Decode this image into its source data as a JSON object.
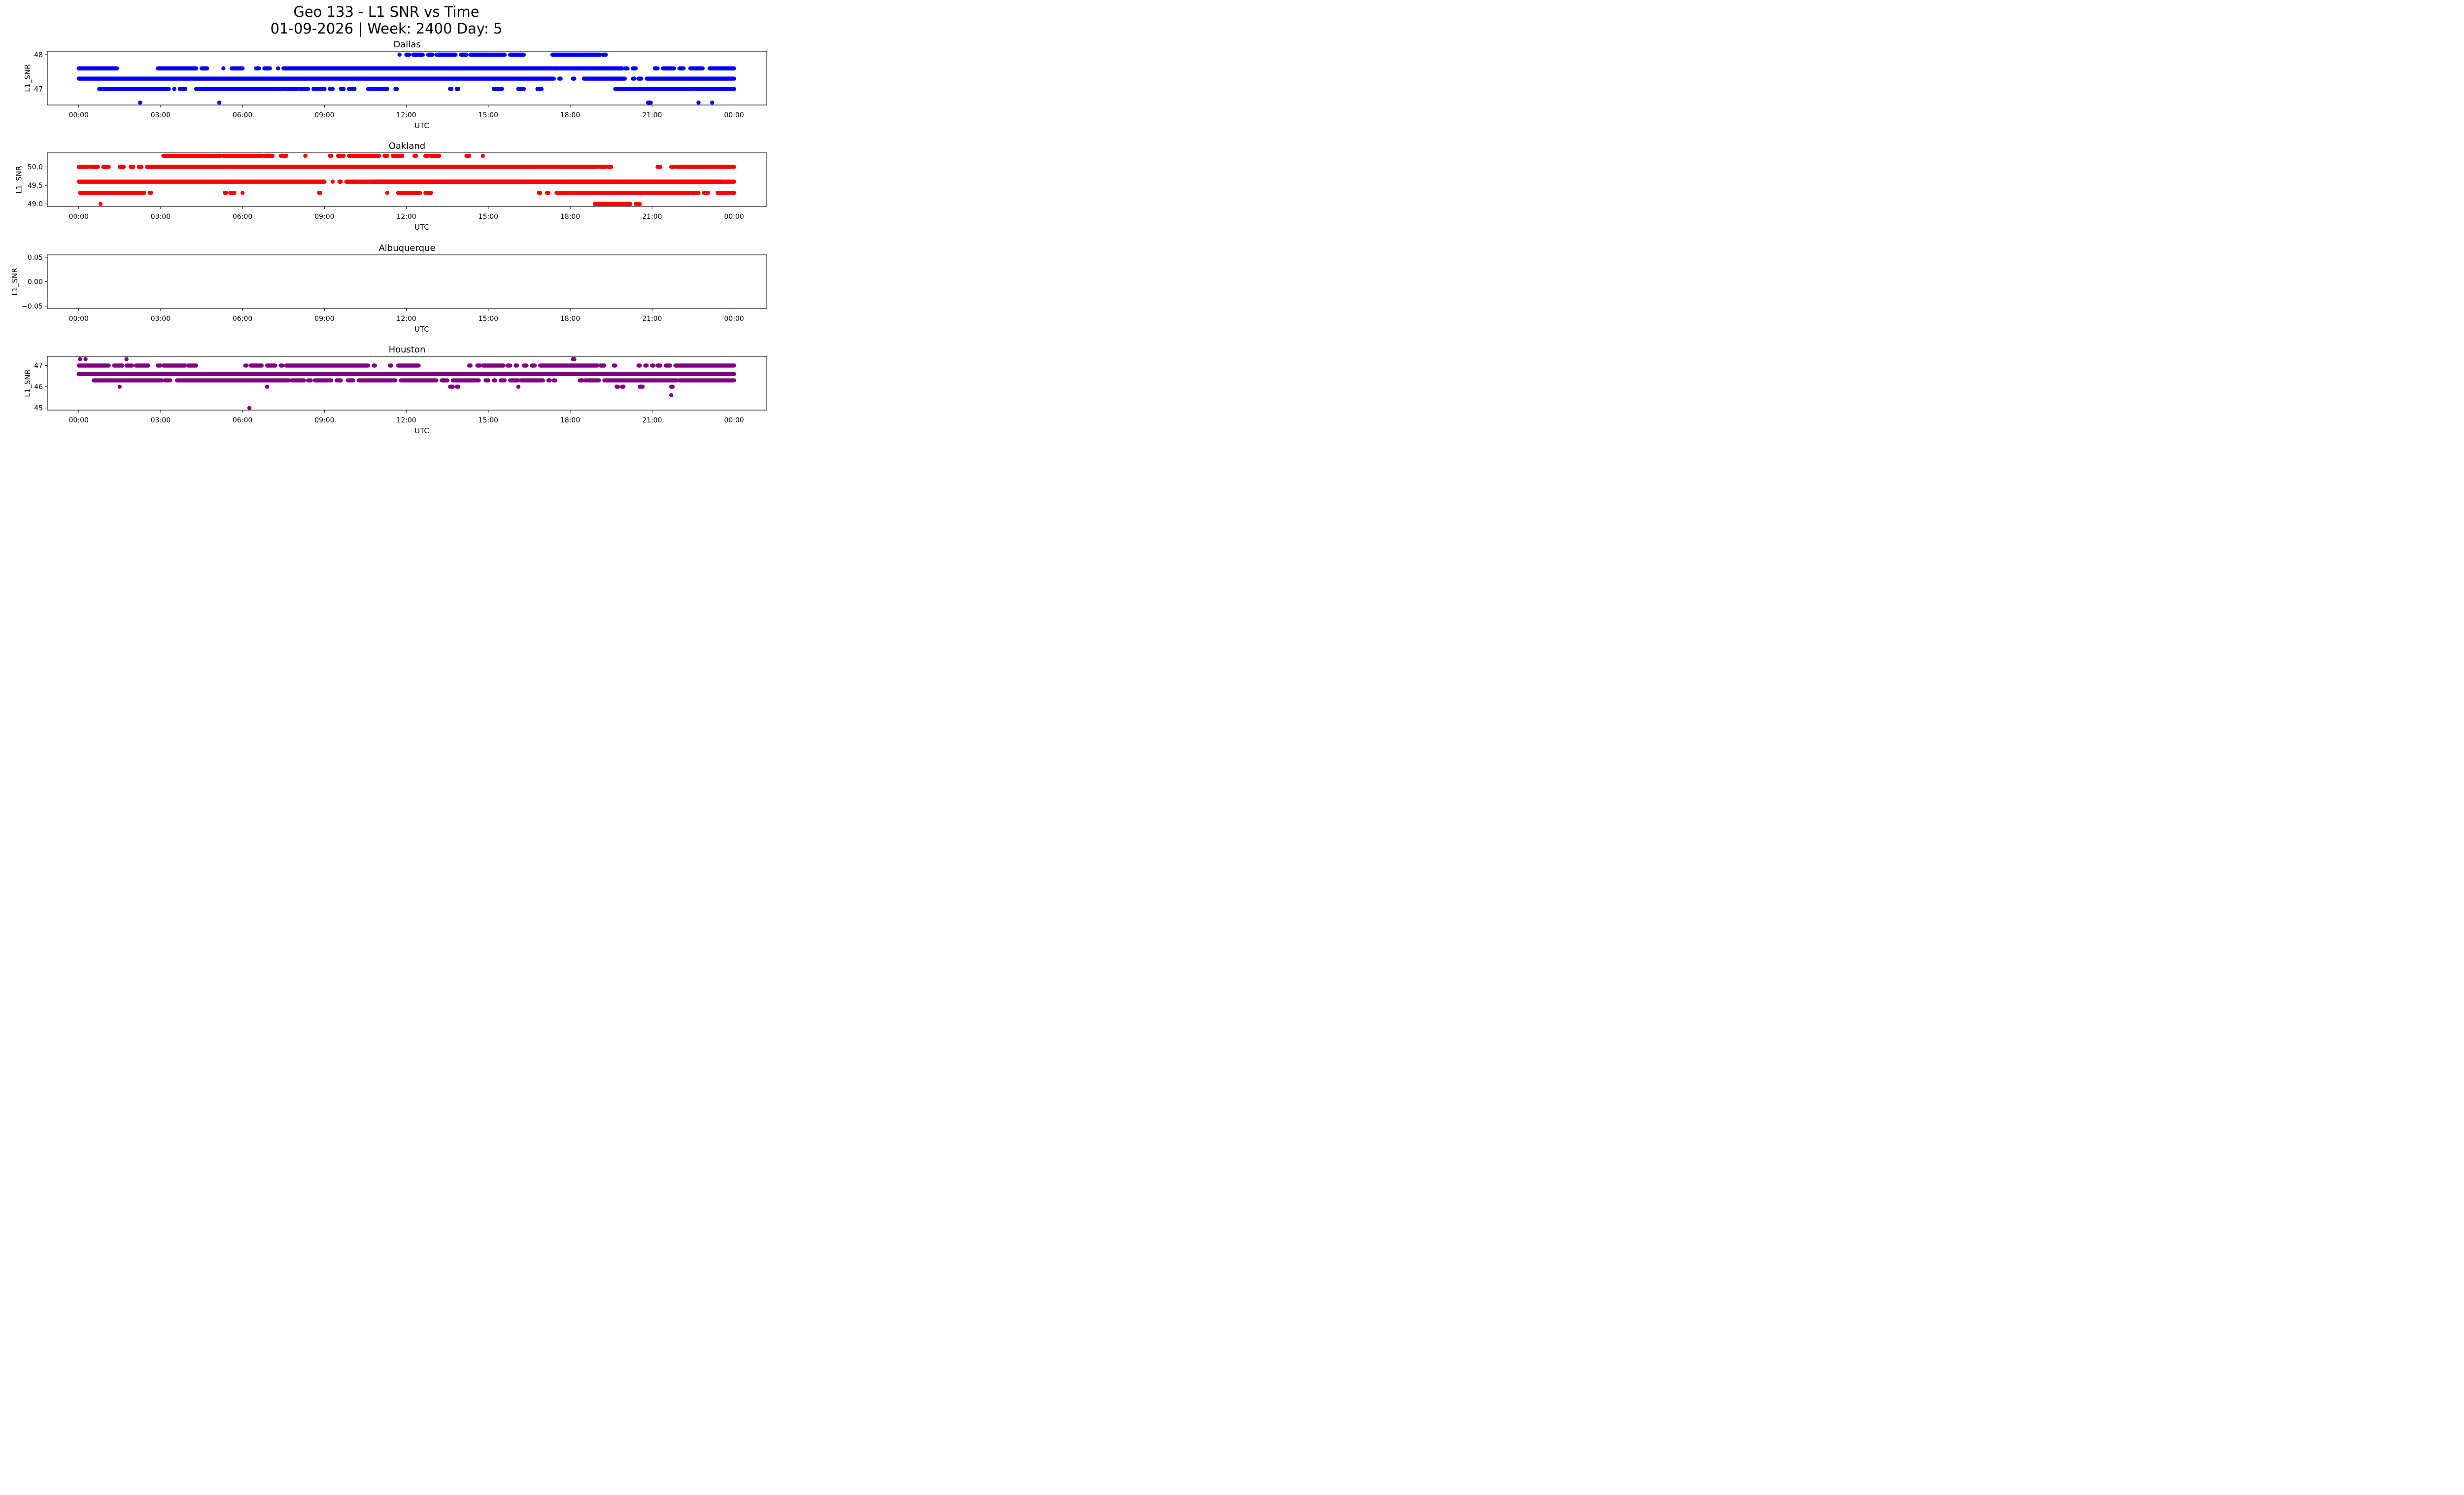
{
  "figure": {
    "title_line1": "Geo 133 - L1 SNR vs Time",
    "title_line2": "01-09-2026 | Week: 2400 Day: 5"
  },
  "chart_data": [
    {
      "type": "scatter",
      "title": "Dallas",
      "xlabel": "UTC",
      "ylabel": "L1_SNR",
      "color": "#0000ff",
      "x_unit": "hours UTC",
      "xlim": [
        -1.15,
        25.2
      ],
      "ylim": [
        46.53,
        48.1
      ],
      "xticks": [
        0,
        3,
        6,
        9,
        12,
        15,
        18,
        21,
        24
      ],
      "xtick_labels": [
        "00:00",
        "03:00",
        "06:00",
        "09:00",
        "12:00",
        "15:00",
        "18:00",
        "21:00",
        "00:00"
      ],
      "yticks": [
        47,
        48
      ],
      "ytick_labels": [
        "47",
        "48"
      ],
      "levels": [
        {
          "y": 48.0,
          "runs": [
            [
              11.75,
              11.75
            ],
            [
              12.0,
              12.1
            ],
            [
              12.25,
              12.6
            ],
            [
              12.8,
              12.95
            ],
            [
              13.1,
              13.8
            ],
            [
              14.0,
              14.2
            ],
            [
              14.35,
              15.0
            ],
            [
              15.05,
              15.6
            ],
            [
              15.8,
              16.3
            ],
            [
              17.35,
              19.1
            ],
            [
              19.2,
              19.3
            ]
          ]
        },
        {
          "y": 47.6,
          "runs": [
            [
              0.0,
              1.4
            ],
            [
              2.9,
              4.3
            ],
            [
              4.5,
              4.7
            ],
            [
              5.3,
              5.3
            ],
            [
              5.6,
              6.0
            ],
            [
              6.5,
              6.6
            ],
            [
              6.8,
              7.0
            ],
            [
              7.3,
              7.3
            ],
            [
              7.5,
              19.9
            ],
            [
              20.0,
              20.1
            ],
            [
              20.3,
              20.4
            ],
            [
              21.1,
              21.2
            ],
            [
              21.4,
              21.8
            ],
            [
              22.0,
              22.15
            ],
            [
              22.4,
              22.85
            ],
            [
              23.1,
              24.0
            ]
          ]
        },
        {
          "y": 47.3,
          "runs": [
            [
              0.0,
              17.4
            ],
            [
              17.6,
              17.65
            ],
            [
              18.1,
              18.15
            ],
            [
              18.5,
              20.0
            ],
            [
              20.3,
              20.35
            ],
            [
              20.5,
              20.6
            ],
            [
              20.8,
              24.0
            ]
          ]
        },
        {
          "y": 47.0,
          "runs": [
            [
              0.75,
              3.3
            ],
            [
              3.5,
              3.5
            ],
            [
              3.7,
              3.9
            ],
            [
              4.3,
              7.5
            ],
            [
              7.6,
              8.0
            ],
            [
              8.1,
              8.4
            ],
            [
              8.6,
              9.0
            ],
            [
              9.2,
              9.3
            ],
            [
              9.6,
              9.7
            ],
            [
              9.9,
              10.1
            ],
            [
              10.6,
              10.8
            ],
            [
              10.9,
              11.3
            ],
            [
              11.6,
              11.65
            ],
            [
              13.6,
              13.65
            ],
            [
              13.85,
              13.9
            ],
            [
              15.2,
              15.5
            ],
            [
              16.1,
              16.3
            ],
            [
              16.8,
              16.95
            ],
            [
              19.65,
              22.5
            ],
            [
              22.6,
              23.8
            ],
            [
              23.85,
              24.0
            ]
          ]
        },
        {
          "y": 46.6,
          "runs": [
            [
              2.25,
              2.25
            ],
            [
              5.15,
              5.15
            ],
            [
              20.85,
              20.95
            ],
            [
              22.7,
              22.7
            ],
            [
              23.2,
              23.2
            ]
          ]
        }
      ]
    },
    {
      "type": "scatter",
      "title": "Oakland",
      "xlabel": "UTC",
      "ylabel": "L1_SNR",
      "color": "#ff0000",
      "x_unit": "hours UTC",
      "xlim": [
        -1.15,
        25.2
      ],
      "ylim": [
        48.93,
        50.38
      ],
      "xticks": [
        0,
        3,
        6,
        9,
        12,
        15,
        18,
        21,
        24
      ],
      "xtick_labels": [
        "00:00",
        "03:00",
        "06:00",
        "09:00",
        "12:00",
        "15:00",
        "18:00",
        "21:00",
        "00:00"
      ],
      "yticks": [
        49.0,
        49.5,
        50.0
      ],
      "ytick_labels": [
        "49.0",
        "49.5",
        "50.0"
      ],
      "levels": [
        {
          "y": 50.3,
          "runs": [
            [
              3.1,
              5.2
            ],
            [
              5.3,
              6.7
            ],
            [
              6.8,
              7.1
            ],
            [
              6.85,
              6.95
            ],
            [
              7.4,
              7.6
            ],
            [
              8.3,
              8.3
            ],
            [
              9.2,
              9.25
            ],
            [
              9.5,
              9.7
            ],
            [
              9.9,
              11.0
            ],
            [
              11.2,
              11.3
            ],
            [
              11.5,
              11.85
            ],
            [
              12.3,
              12.35
            ],
            [
              12.7,
              12.8
            ],
            [
              12.9,
              13.2
            ],
            [
              14.2,
              14.3
            ],
            [
              14.8,
              14.8
            ]
          ]
        },
        {
          "y": 50.0,
          "runs": [
            [
              0.0,
              0.35
            ],
            [
              0.45,
              0.7
            ],
            [
              0.9,
              1.1
            ],
            [
              1.5,
              1.65
            ],
            [
              1.9,
              2.0
            ],
            [
              2.2,
              2.3
            ],
            [
              2.5,
              19.0
            ],
            [
              19.1,
              19.3
            ],
            [
              19.4,
              19.5
            ],
            [
              21.2,
              21.3
            ],
            [
              21.7,
              21.8
            ],
            [
              21.9,
              24.0
            ]
          ]
        },
        {
          "y": 49.6,
          "runs": [
            [
              0.0,
              9.0
            ],
            [
              9.3,
              9.3
            ],
            [
              9.55,
              9.6
            ],
            [
              9.8,
              23.55
            ],
            [
              10.0,
              10.05
            ],
            [
              10.35,
              10.4
            ],
            [
              10.5,
              10.55
            ],
            [
              10.7,
              24.0
            ]
          ]
        },
        {
          "y": 49.3,
          "runs": [
            [
              0.05,
              2.4
            ],
            [
              2.6,
              2.65
            ],
            [
              5.35,
              5.4
            ],
            [
              5.55,
              5.7
            ],
            [
              6.0,
              6.0
            ],
            [
              8.8,
              8.85
            ],
            [
              11.3,
              11.3
            ],
            [
              11.7,
              12.5
            ],
            [
              12.7,
              12.9
            ],
            [
              16.85,
              16.9
            ],
            [
              17.15,
              17.2
            ],
            [
              17.5,
              17.9
            ],
            [
              18.0,
              22.7
            ],
            [
              22.9,
              23.05
            ],
            [
              23.4,
              24.0
            ]
          ]
        },
        {
          "y": 49.0,
          "runs": [
            [
              0.8,
              0.8
            ],
            [
              18.9,
              20.2
            ],
            [
              20.4,
              20.55
            ]
          ]
        }
      ]
    },
    {
      "type": "scatter",
      "title": "Albuquerque",
      "xlabel": "UTC",
      "ylabel": "L1_SNR",
      "color": "#000000",
      "x_unit": "hours UTC",
      "xlim": [
        -1.15,
        25.2
      ],
      "ylim": [
        -0.055,
        0.055
      ],
      "xticks": [
        0,
        3,
        6,
        9,
        12,
        15,
        18,
        21,
        24
      ],
      "xtick_labels": [
        "00:00",
        "03:00",
        "06:00",
        "09:00",
        "12:00",
        "15:00",
        "18:00",
        "21:00",
        "00:00"
      ],
      "yticks": [
        -0.05,
        0.0,
        0.05
      ],
      "ytick_labels": [
        "−0.05",
        "0.00",
        "0.05"
      ],
      "levels": []
    },
    {
      "type": "scatter",
      "title": "Houston",
      "xlabel": "UTC",
      "ylabel": "L1_SNR",
      "color": "#800080",
      "x_unit": "hours UTC",
      "xlim": [
        -1.15,
        25.2
      ],
      "ylim": [
        44.9,
        47.43
      ],
      "xticks": [
        0,
        3,
        6,
        9,
        12,
        15,
        18,
        21,
        24
      ],
      "xtick_labels": [
        "00:00",
        "03:00",
        "06:00",
        "09:00",
        "12:00",
        "15:00",
        "18:00",
        "21:00",
        "00:00"
      ],
      "yticks": [
        45,
        46,
        47
      ],
      "ytick_labels": [
        "45",
        "46",
        "47"
      ],
      "levels": [
        {
          "y": 47.3,
          "runs": [
            [
              0.05,
              0.05
            ],
            [
              0.25,
              0.25
            ],
            [
              1.75,
              1.75
            ],
            [
              18.1,
              18.15
            ]
          ]
        },
        {
          "y": 47.0,
          "runs": [
            [
              0.0,
              1.1
            ],
            [
              1.3,
              1.6
            ],
            [
              1.75,
              1.95
            ],
            [
              2.1,
              2.55
            ],
            [
              2.9,
              3.0
            ],
            [
              3.1,
              3.9
            ],
            [
              4.0,
              4.3
            ],
            [
              6.1,
              6.15
            ],
            [
              6.3,
              6.7
            ],
            [
              6.9,
              7.2
            ],
            [
              7.4,
              7.45
            ],
            [
              7.6,
              10.6
            ],
            [
              10.8,
              10.85
            ],
            [
              11.4,
              11.45
            ],
            [
              11.7,
              12.45
            ],
            [
              14.3,
              14.35
            ],
            [
              14.6,
              14.7
            ],
            [
              14.8,
              15.55
            ],
            [
              15.7,
              15.8
            ],
            [
              16.0,
              16.05
            ],
            [
              16.3,
              16.4
            ],
            [
              16.6,
              16.7
            ],
            [
              16.9,
              19.0
            ],
            [
              19.1,
              19.25
            ],
            [
              19.6,
              19.65
            ],
            [
              20.5,
              20.55
            ],
            [
              20.75,
              20.8
            ],
            [
              21.0,
              21.05
            ],
            [
              21.2,
              21.3
            ],
            [
              21.5,
              21.65
            ],
            [
              21.85,
              24.0
            ]
          ]
        },
        {
          "y": 46.6,
          "runs": [
            [
              0.0,
              24.0
            ]
          ]
        },
        {
          "y": 46.3,
          "runs": [
            [
              0.55,
              3.05
            ],
            [
              3.15,
              3.35
            ],
            [
              3.6,
              7.7
            ],
            [
              7.8,
              8.25
            ],
            [
              8.4,
              8.5
            ],
            [
              8.65,
              9.25
            ],
            [
              9.45,
              9.6
            ],
            [
              9.85,
              10.05
            ],
            [
              10.25,
              11.6
            ],
            [
              11.8,
              13.1
            ],
            [
              13.3,
              13.5
            ],
            [
              13.7,
              14.65
            ],
            [
              14.9,
              15.0
            ],
            [
              15.2,
              15.25
            ],
            [
              15.45,
              15.6
            ],
            [
              15.8,
              16.1
            ],
            [
              16.2,
              17.0
            ],
            [
              17.2,
              17.25
            ],
            [
              17.4,
              17.45
            ],
            [
              18.35,
              18.45
            ],
            [
              18.55,
              19.05
            ],
            [
              19.25,
              21.9
            ],
            [
              22.0,
              24.0
            ]
          ]
        },
        {
          "y": 46.0,
          "runs": [
            [
              1.5,
              1.5
            ],
            [
              6.9,
              6.9
            ],
            [
              13.6,
              13.7
            ],
            [
              13.85,
              13.9
            ],
            [
              16.1,
              16.1
            ],
            [
              19.7,
              19.75
            ],
            [
              19.9,
              19.95
            ],
            [
              20.55,
              20.65
            ],
            [
              21.7,
              21.75
            ]
          ]
        },
        {
          "y": 45.6,
          "runs": [
            [
              21.7,
              21.7
            ]
          ]
        },
        {
          "y": 45.0,
          "runs": [
            [
              6.25,
              6.25
            ]
          ]
        }
      ]
    }
  ]
}
